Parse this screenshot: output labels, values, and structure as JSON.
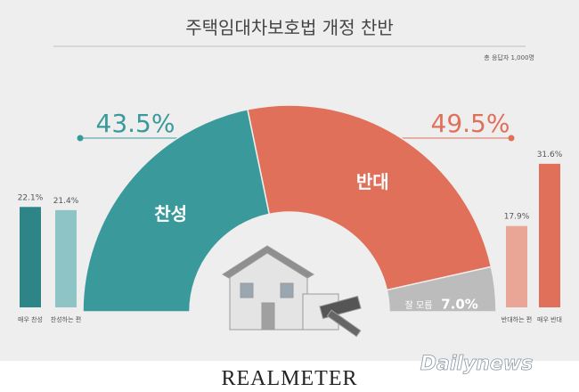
{
  "title": "주택임대차보호법 개정 찬반",
  "subtitle": "총 응답자 1,000명",
  "source": "REALMETER",
  "watermark": "Dailynews",
  "chart_data": [
    {
      "type": "pie",
      "categories": [
        "찬성",
        "반대",
        "잘 모름"
      ],
      "values": [
        43.5,
        49.5,
        7.0
      ],
      "value_labels": [
        "43.5%",
        "49.5%",
        "7.0%"
      ],
      "colors": [
        "#3a9a9b",
        "#e0705a",
        "#bcbcbc"
      ]
    },
    {
      "type": "bar",
      "categories": [
        "매우 찬성",
        "찬성하는 편",
        "반대하는 편",
        "매우 반대"
      ],
      "values": [
        22.1,
        21.4,
        17.9,
        31.6
      ],
      "value_labels": [
        "22.1%",
        "21.4%",
        "17.9%",
        "31.6%"
      ],
      "colors": [
        "#2e8587",
        "#8fc4c6",
        "#e9a596",
        "#e0705a"
      ]
    }
  ]
}
